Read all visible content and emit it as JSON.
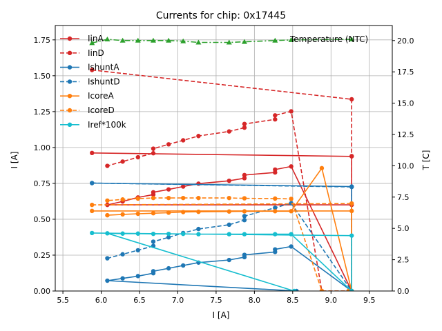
{
  "chart_data": {
    "type": "line",
    "title": "Currents for chip: 0x17445",
    "xlabel": "I [A]",
    "ylabel": "I [A]",
    "y2label": "T [C]",
    "xlim": [
      5.4,
      9.8
    ],
    "ylim": [
      0.0,
      1.85
    ],
    "y2lim": [
      0,
      21.2
    ],
    "xticks": [
      5.5,
      6.0,
      6.5,
      7.0,
      7.5,
      8.0,
      8.5,
      9.0,
      9.5
    ],
    "yticks": [
      0.0,
      0.25,
      0.5,
      0.75,
      1.0,
      1.25,
      1.5,
      1.75
    ],
    "y2ticks": [
      0.0,
      2.5,
      5.0,
      7.5,
      10.0,
      12.5,
      15.0,
      17.5,
      20.0
    ],
    "grid": true,
    "legend_position": "upper-left",
    "series": [
      {
        "name": "IinA",
        "color": "#d62728",
        "dash": "solid",
        "x": [
          5.88,
          9.27,
          9.27,
          8.48,
          8.27,
          8.27,
          7.87,
          7.87,
          7.67,
          7.27,
          7.07,
          6.88,
          6.68,
          6.68,
          6.48,
          6.28,
          6.08,
          9.27,
          9.27
        ],
        "y": [
          0.962,
          0.938,
          0.0,
          0.868,
          0.846,
          0.826,
          0.808,
          0.786,
          0.768,
          0.748,
          0.728,
          0.708,
          0.688,
          0.672,
          0.652,
          0.624,
          0.6,
          0.6,
          0.94
        ]
      },
      {
        "name": "IinD",
        "color": "#d62728",
        "dash": "dashed",
        "x": [
          5.88,
          9.27,
          9.27,
          9.23,
          8.88,
          8.48,
          8.27,
          8.27,
          7.87,
          7.87,
          7.67,
          7.27,
          7.07,
          6.88,
          6.68,
          6.68,
          6.48,
          6.28,
          6.08
        ],
        "y": [
          1.54,
          1.336,
          0.0,
          0.0,
          0.0,
          1.252,
          1.224,
          1.196,
          1.164,
          1.138,
          1.112,
          1.08,
          1.05,
          1.022,
          0.992,
          0.96,
          0.932,
          0.902,
          0.872
        ]
      },
      {
        "name": "IshuntA",
        "color": "#1f77b4",
        "dash": "solid",
        "x": [
          5.88,
          9.27,
          9.27,
          8.48,
          8.27,
          8.27,
          7.87,
          7.87,
          7.67,
          7.27,
          7.07,
          6.88,
          6.68,
          6.68,
          6.48,
          6.28,
          6.08,
          8.55
        ],
        "y": [
          0.752,
          0.728,
          0.0,
          0.31,
          0.29,
          0.272,
          0.252,
          0.236,
          0.216,
          0.198,
          0.178,
          0.158,
          0.138,
          0.124,
          0.104,
          0.088,
          0.072,
          0.0
        ]
      },
      {
        "name": "IshuntD",
        "color": "#1f77b4",
        "dash": "dashed",
        "x": [
          5.88,
          9.27,
          9.27,
          8.48,
          8.27,
          7.87,
          7.87,
          7.67,
          7.27,
          7.07,
          6.88,
          6.68,
          6.68,
          6.48,
          6.28,
          6.08
        ],
        "y": [
          0.752,
          0.725,
          0.0,
          0.612,
          0.58,
          0.522,
          0.494,
          0.462,
          0.432,
          0.404,
          0.374,
          0.344,
          0.314,
          0.284,
          0.256,
          0.228
        ]
      },
      {
        "name": "IcoreA",
        "color": "#ff7f0e",
        "dash": "solid",
        "x": [
          5.88,
          9.27,
          9.27,
          8.88,
          8.48,
          8.27,
          7.87,
          7.67,
          7.27,
          7.07,
          6.88,
          6.68,
          6.48,
          6.28,
          6.08
        ],
        "y": [
          0.558,
          0.558,
          0.0,
          0.856,
          0.556,
          0.556,
          0.555,
          0.554,
          0.552,
          0.55,
          0.546,
          0.542,
          0.538,
          0.534,
          0.528
        ]
      },
      {
        "name": "IcoreD",
        "color": "#ff7f0e",
        "dash": "dashed",
        "x": [
          5.88,
          9.27,
          9.27,
          9.23,
          8.88,
          8.48,
          8.27,
          7.87,
          7.67,
          7.27,
          7.07,
          6.88,
          6.68,
          6.48,
          6.28,
          6.08
        ],
        "y": [
          0.6,
          0.61,
          0.0,
          0.0,
          0.0,
          0.642,
          0.644,
          0.646,
          0.648,
          0.648,
          0.648,
          0.648,
          0.648,
          0.644,
          0.638,
          0.63
        ]
      },
      {
        "name": "Iref*100k",
        "color": "#17becf",
        "dash": "solid",
        "x": [
          5.88,
          9.27,
          9.27,
          8.48,
          8.27,
          7.87,
          7.67,
          7.27,
          7.07,
          6.88,
          6.68,
          6.48,
          6.28,
          6.08,
          8.52
        ],
        "y": [
          0.404,
          0.386,
          0.0,
          0.396,
          0.396,
          0.396,
          0.396,
          0.396,
          0.398,
          0.398,
          0.398,
          0.4,
          0.4,
          0.402,
          0.0
        ]
      },
      {
        "name": "Temperature (NTC)",
        "color": "#2ca02c",
        "dash": "dashdot",
        "axis": "right",
        "marker": "triangle",
        "x": [
          5.88,
          6.08,
          6.28,
          6.48,
          6.68,
          6.88,
          7.07,
          7.27,
          7.67,
          7.87,
          8.27,
          8.48,
          9.27
        ],
        "y": [
          19.8,
          20.1,
          20.0,
          20.0,
          20.0,
          20.0,
          19.95,
          19.85,
          19.85,
          19.9,
          20.0,
          20.05,
          20.1
        ]
      }
    ]
  }
}
